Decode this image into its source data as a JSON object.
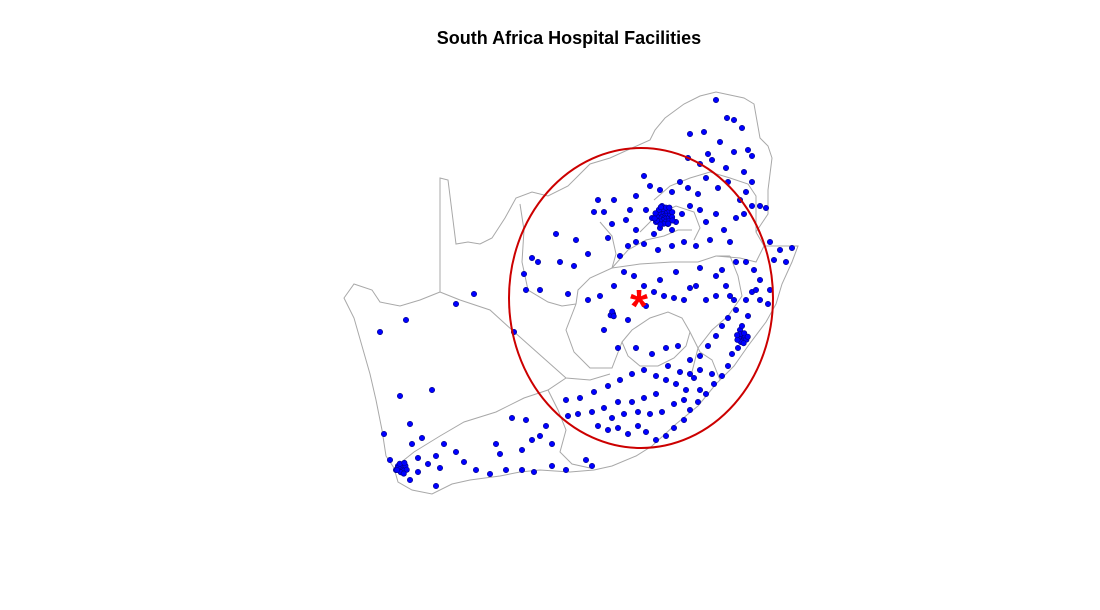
{
  "title": "South Africa Hospital Facilities",
  "colors": {
    "background": "#ffffff",
    "border": "#a8a8a8",
    "facility": "#0000ff",
    "facility_outline": "#000080",
    "circle": "#cc0000",
    "center_marker": "#ff0000"
  },
  "legend": null,
  "center_marker_symbol": "*",
  "map_layers": {
    "country_outline": true,
    "province_boundaries": true,
    "hospital_facilities": "points",
    "coverage_circle": true,
    "center_marker": true
  }
}
